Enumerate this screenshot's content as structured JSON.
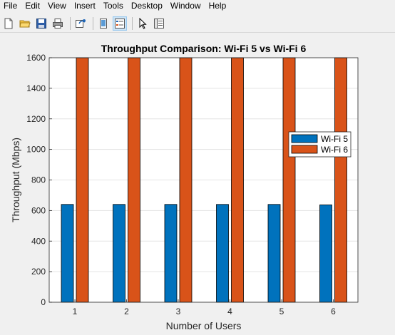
{
  "menu": {
    "items": [
      "File",
      "Edit",
      "View",
      "Insert",
      "Tools",
      "Desktop",
      "Window",
      "Help"
    ]
  },
  "toolbar": {
    "buttons": [
      {
        "icon": "new-figure-icon"
      },
      {
        "icon": "open-file-icon"
      },
      {
        "icon": "save-icon"
      },
      {
        "icon": "print-icon"
      },
      {
        "icon": "link-plot-icon"
      },
      {
        "icon": "dock-icon"
      },
      {
        "icon": "legend-toggle-icon"
      },
      {
        "icon": "pointer-icon"
      },
      {
        "icon": "property-inspector-icon"
      }
    ]
  },
  "chart_data": {
    "type": "bar",
    "title": "Throughput Comparison: Wi-Fi 5 vs Wi-Fi 6",
    "xlabel": "Number of Users",
    "ylabel": "Throughput (Mbps)",
    "categories": [
      "1",
      "2",
      "3",
      "4",
      "5",
      "6"
    ],
    "ylim": [
      0,
      1600
    ],
    "yticks": [
      0,
      200,
      400,
      600,
      800,
      1000,
      1200,
      1400,
      1600
    ],
    "series": [
      {
        "name": "Wi-Fi 5",
        "color": "#0072bd",
        "values": [
          640,
          640,
          640,
          640,
          640,
          637
        ]
      },
      {
        "name": "Wi-Fi 6",
        "color": "#d95319",
        "values": [
          1600,
          1600,
          1600,
          1600,
          1600,
          1600
        ]
      }
    ],
    "grid": "y",
    "legend": "right"
  }
}
